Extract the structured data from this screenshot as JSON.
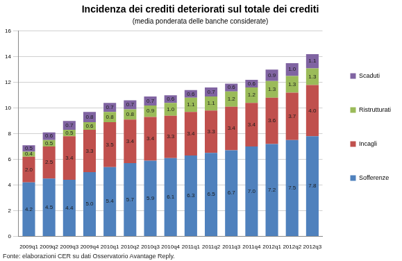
{
  "chart_data": {
    "type": "bar",
    "title": "Incidenza dei crediti deteriorati sul totale dei crediti",
    "subtitle": "(media ponderata delle banche considerate)",
    "source": "Fonte: elaborazioni CER su dati Osservatorio Avantage Reply.",
    "categories": [
      "2009q1",
      "2009q2",
      "2009q3",
      "2009q4",
      "2010q1",
      "2010q2",
      "2010q3",
      "2010q4",
      "2011q1",
      "2011q2",
      "2011q3",
      "2011q4",
      "2012q1",
      "2012q2",
      "2012q3"
    ],
    "series": [
      {
        "name": "Sofferenze",
        "color": "#4f81bd",
        "values": [
          4.2,
          4.5,
          4.4,
          5.0,
          5.4,
          5.7,
          5.9,
          6.1,
          6.3,
          6.5,
          6.7,
          7.0,
          7.2,
          7.5,
          7.8
        ],
        "value_labels": [
          "4.2",
          "4.5",
          "4.4",
          "5.0",
          "5.4",
          "5.7",
          "5.9",
          "6.1",
          "6.3",
          "6.5",
          "6.7",
          "7.0",
          "7.2",
          "7.5",
          "7.8"
        ]
      },
      {
        "name": "Incagli",
        "color": "#c0504d",
        "values": [
          2.0,
          2.5,
          3.4,
          3.3,
          3.5,
          3.4,
          3.4,
          3.3,
          3.4,
          3.3,
          3.4,
          3.4,
          3.6,
          3.7,
          4.0
        ],
        "value_labels": [
          "2.0",
          "2.5",
          "3.4",
          "3.3",
          "3.5",
          "3.4",
          "3.4",
          "3.3",
          "3.4",
          "3.3",
          "3.4",
          "3.4",
          "3.6",
          "3.7",
          "4.0"
        ]
      },
      {
        "name": "Ristrutturati",
        "color": "#9bbb59",
        "values": [
          0.4,
          0.5,
          0.5,
          0.6,
          0.8,
          0.8,
          0.9,
          1.0,
          1.1,
          1.1,
          1.2,
          1.2,
          1.3,
          1.3,
          1.3
        ],
        "value_labels": [
          "0.4",
          "0.5",
          "0.5",
          "0.6",
          "0.8",
          "0.8",
          "0.9",
          "1.0",
          "1.1",
          "1.1",
          "1.2",
          "1.2",
          "1.3",
          "1.3",
          "1.3"
        ]
      },
      {
        "name": "Scaduti",
        "color": "#8064a2",
        "values": [
          0.5,
          0.6,
          0.7,
          0.8,
          0.7,
          0.7,
          0.7,
          0.6,
          0.6,
          0.7,
          0.6,
          0.6,
          0.9,
          1.0,
          1.1
        ],
        "value_labels": [
          "0.5",
          "0.6",
          "0.7",
          "0.8",
          "0.7",
          "0.7",
          "0.7",
          "0.6",
          "0.6",
          "0.7",
          "0.6",
          "0.6",
          "0.9",
          "1.0",
          "1.1"
        ]
      }
    ],
    "ylim": [
      0,
      16
    ],
    "yticks": [
      0,
      2,
      4,
      6,
      8,
      10,
      12,
      14,
      16
    ],
    "stacked": true,
    "grid": true,
    "legend": "right",
    "data_labels": true
  }
}
